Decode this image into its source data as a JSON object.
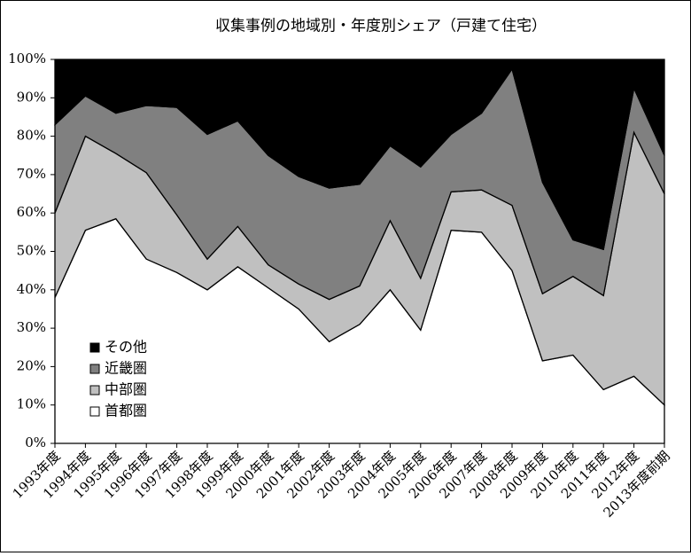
{
  "chart_data": {
    "type": "stacked_area",
    "title": "収集事例の地域別・年度別シェア（戸建て住宅）",
    "categories": [
      "1993年度",
      "1994年度",
      "1995年度",
      "1996年度",
      "1997年度",
      "1998年度",
      "1999年度",
      "2000年度",
      "2001年度",
      "2002年度",
      "2003年度",
      "2004年度",
      "2005年度",
      "2006年度",
      "2007年度",
      "2008年度",
      "2009年度",
      "2010年度",
      "2011年度",
      "2012年度",
      "2013年度前期"
    ],
    "series": [
      {
        "name": "首都圏",
        "color": "#ffffff",
        "values": [
          38,
          55.5,
          58.5,
          48,
          44.5,
          40,
          46,
          40.5,
          35,
          26.5,
          31,
          40,
          29.5,
          55.5,
          55,
          45,
          21.5,
          23,
          14,
          17.5,
          10
        ]
      },
      {
        "name": "中部圏",
        "color": "#c0c0c0",
        "values": [
          22,
          24.5,
          17,
          22.5,
          15,
          8,
          10.5,
          6,
          6.5,
          11,
          10,
          18,
          13.5,
          10,
          11,
          17,
          17.5,
          20.5,
          24.5,
          63.5,
          55
        ]
      },
      {
        "name": "近畿圏",
        "color": "#808080",
        "values": [
          23,
          10.5,
          10.5,
          17.5,
          28,
          32.5,
          27.5,
          28.5,
          28,
          29,
          26.5,
          19.5,
          29,
          15,
          20,
          35.5,
          29,
          9.5,
          12,
          11.5,
          10
        ]
      },
      {
        "name": "その他",
        "color": "#000000",
        "values": [
          17,
          9.5,
          14,
          12,
          12.5,
          19.5,
          16,
          25,
          30.5,
          33.5,
          32.5,
          22.5,
          28,
          19.5,
          14,
          2.5,
          32,
          47,
          49.5,
          7.5,
          25
        ]
      }
    ],
    "ylim": [
      0,
      100
    ],
    "yticks": [
      {
        "value": 0,
        "label": "0%"
      },
      {
        "value": 10,
        "label": "10%"
      },
      {
        "value": 20,
        "label": "20%"
      },
      {
        "value": 30,
        "label": "30%"
      },
      {
        "value": 40,
        "label": "40%"
      },
      {
        "value": 50,
        "label": "50%"
      },
      {
        "value": 60,
        "label": "60%"
      },
      {
        "value": 70,
        "label": "70%"
      },
      {
        "value": 80,
        "label": "80%"
      },
      {
        "value": 90,
        "label": "90%"
      },
      {
        "value": 100,
        "label": "100%"
      }
    ],
    "legend": "lower left"
  }
}
